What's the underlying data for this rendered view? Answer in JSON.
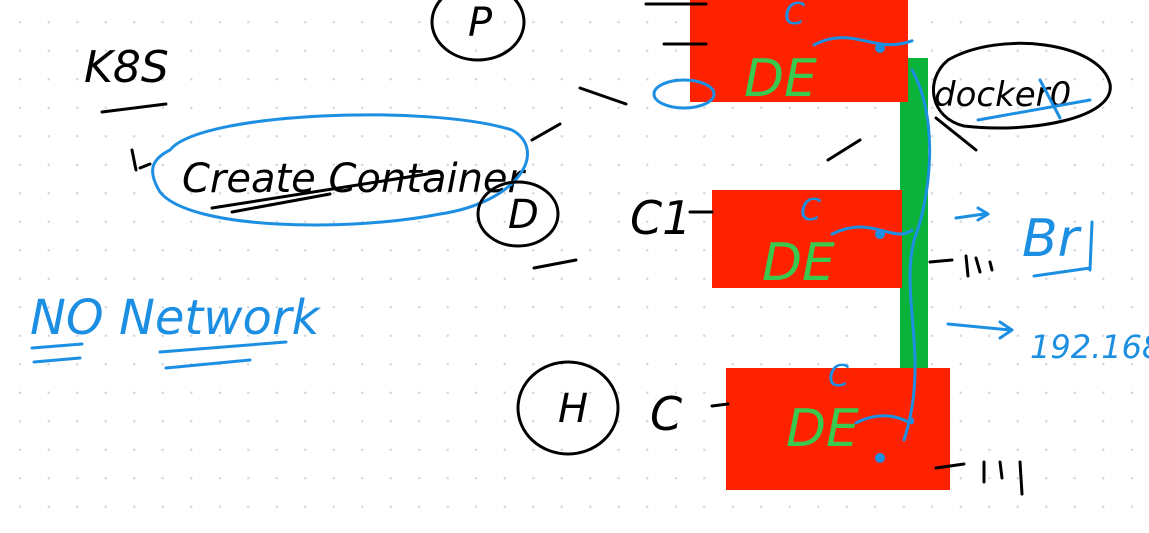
{
  "notes": {
    "k8s": "K8S",
    "create_container": "Create Container",
    "no_network": "NO Network"
  },
  "containers": [
    {
      "node_label": "P",
      "container_label": "",
      "engine_label": "DE",
      "engine_sub": "C"
    },
    {
      "node_label": "D",
      "container_label": "C1",
      "engine_label": "DE",
      "engine_sub": "C"
    },
    {
      "node_label": "H",
      "container_label": "C",
      "engine_label": "DE",
      "engine_sub": "C"
    }
  ],
  "network": {
    "docker0": "docker0",
    "bridge": "Br",
    "subnet": "192.168.",
    "dashes_1": "",
    "dashes_2": ""
  },
  "colors": {
    "engine_box": "#ff2200",
    "bridge_bar": "#0bb33a",
    "ink_black": "#000000",
    "ink_blue": "#1c8fe3",
    "ink_green": "#38c94e"
  }
}
